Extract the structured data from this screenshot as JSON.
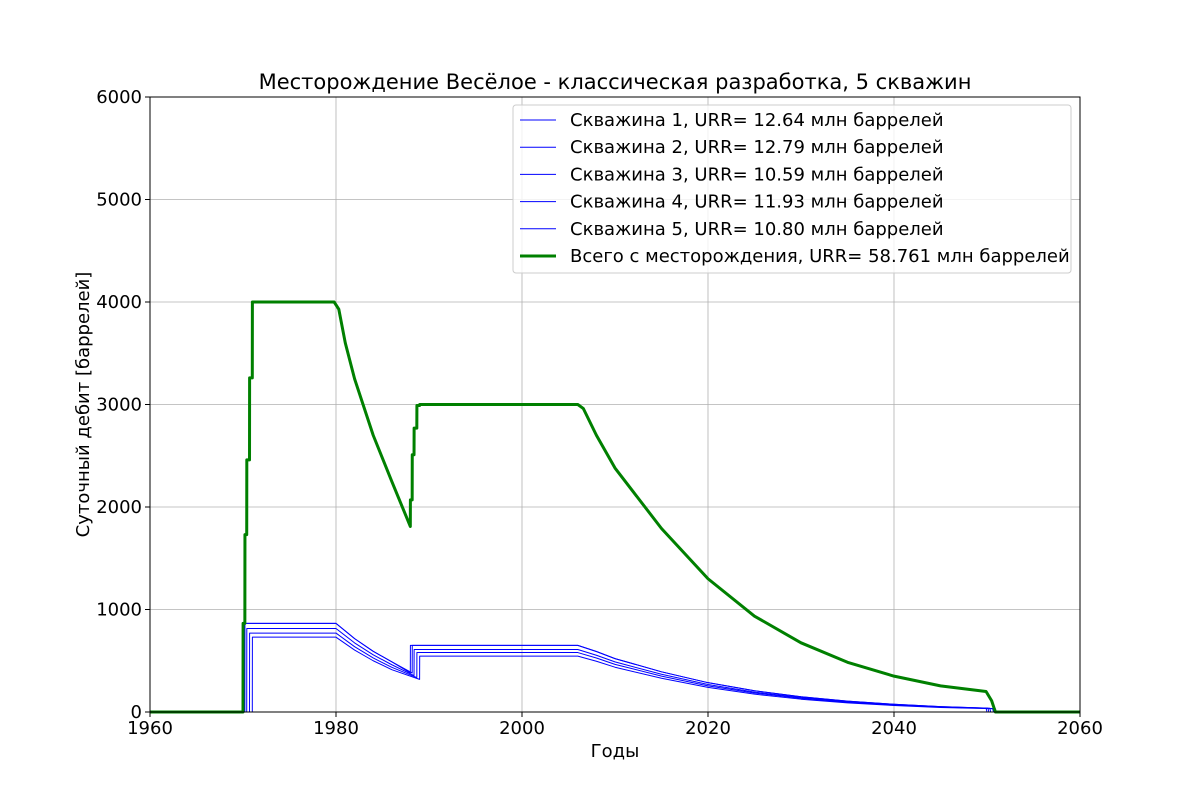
{
  "chart_data": {
    "type": "line",
    "title": "Месторождение Весёлое - классическая разработка, 5 скважин",
    "xlabel": "Годы",
    "ylabel": "Суточный дебит [баррелей]",
    "xlim": [
      1960,
      2060
    ],
    "ylim": [
      0,
      6000
    ],
    "xticks": [
      1960,
      1980,
      2000,
      2020,
      2040,
      2060
    ],
    "xtick_labels": [
      "1960",
      "1980",
      "2000",
      "2020",
      "2040",
      "2060"
    ],
    "yticks": [
      0,
      1000,
      2000,
      3000,
      4000,
      5000,
      6000
    ],
    "ytick_labels": [
      "0",
      "1000",
      "2000",
      "3000",
      "4000",
      "5000",
      "6000"
    ],
    "grid": true,
    "legend_position": "top-right",
    "colors": {
      "wells": "#0000ff",
      "total": "#008000"
    },
    "series": [
      {
        "name": "Скважина 1, URR= 12.64 млн баррелей",
        "color": "#0000ff",
        "x": [
          1960,
          1970.0,
          1970.01,
          1980.0,
          1982,
          1984,
          1986,
          1987.99,
          1988.0,
          2006.0,
          2008,
          2010,
          2015,
          2020,
          2025,
          2030,
          2035,
          2040,
          2045,
          2049.9,
          2050.0,
          2060
        ],
        "y": [
          0,
          0,
          865,
          865,
          716,
          592,
          490,
          381,
          650,
          650,
          590,
          521,
          392,
          286,
          207,
          149,
          106,
          75,
          52,
          38,
          0,
          0
        ]
      },
      {
        "name": "Скважина 2, URR= 12.79 млн баррелей",
        "color": "#0000ff",
        "x": [
          1960,
          1970.2,
          1970.21,
          1980.0,
          1982,
          1984,
          1986,
          1988.19,
          1988.2,
          2006.0,
          2008,
          2010,
          2015,
          2020,
          2025,
          2030,
          2035,
          2040,
          2045,
          2050.1,
          2050.2,
          2060
        ],
        "y": [
          0,
          0,
          865,
          865,
          716,
          592,
          490,
          381,
          650,
          650,
          590,
          521,
          392,
          286,
          207,
          149,
          106,
          75,
          52,
          38,
          0,
          0
        ]
      },
      {
        "name": "Скважина 3, URR= 10.59 млн баррелей",
        "color": "#0000ff",
        "x": [
          1960,
          1970.4,
          1970.41,
          1980.0,
          1982,
          1984,
          1986,
          1988.39,
          1988.4,
          2006.0,
          2008,
          2010,
          2015,
          2020,
          2025,
          2030,
          2035,
          2040,
          2045,
          2050.3,
          2050.4,
          2060
        ],
        "y": [
          0,
          0,
          815,
          815,
          674,
          558,
          461,
          355,
          610,
          610,
          554,
          489,
          368,
          268,
          194,
          140,
          100,
          70,
          49,
          36,
          0,
          0
        ]
      },
      {
        "name": "Скважина 4, URR= 11.93 млн баррелей",
        "color": "#0000ff",
        "x": [
          1960,
          1970.7,
          1970.71,
          1980.0,
          1982,
          1984,
          1986,
          1988.69,
          1988.7,
          2006.0,
          2008,
          2010,
          2015,
          2020,
          2025,
          2030,
          2035,
          2040,
          2045,
          2050.6,
          2050.7,
          2060
        ],
        "y": [
          0,
          0,
          770,
          770,
          637,
          527,
          436,
          336,
          580,
          580,
          527,
          465,
          350,
          255,
          185,
          133,
          95,
          67,
          47,
          34,
          0,
          0
        ]
      },
      {
        "name": "Скважина 5, URR= 10.80 млн баррелей",
        "color": "#0000ff",
        "x": [
          1960,
          1971.0,
          1971.01,
          1980.0,
          1982,
          1984,
          1986,
          1988.99,
          1989.0,
          2006.0,
          2008,
          2010,
          2015,
          2020,
          2025,
          2030,
          2035,
          2040,
          2045,
          2050.9,
          2051.0,
          2060
        ],
        "y": [
          0,
          0,
          730,
          730,
          604,
          500,
          413,
          318,
          545,
          545,
          495,
          437,
          329,
          240,
          174,
          125,
          89,
          63,
          44,
          32,
          0,
          0
        ]
      },
      {
        "name": "Всего с месторождения, URR= 58.761 млн баррелей",
        "color": "#008000",
        "x": [
          1960,
          1970.0,
          1970.01,
          1970.2,
          1970.21,
          1970.4,
          1970.41,
          1970.7,
          1970.71,
          1971.0,
          1971.01,
          1979.8,
          1980.3,
          1981,
          1982,
          1984,
          1986,
          1987.99,
          1988.0,
          1988.19,
          1988.2,
          1988.39,
          1988.4,
          1988.69,
          1988.7,
          1988.99,
          1989.0,
          2006.0,
          2006.6,
          2008,
          2010,
          2015,
          2020,
          2025,
          2030,
          2035,
          2040,
          2045,
          2049.9,
          2050.5,
          2050.9,
          2060
        ],
        "y": [
          0,
          0,
          865,
          865,
          1730,
          1730,
          2460,
          2460,
          3260,
          3260,
          4000,
          4000,
          3930,
          3600,
          3250,
          2700,
          2250,
          1810,
          2070,
          2070,
          2510,
          2510,
          2770,
          2770,
          2990,
          2990,
          3000,
          3000,
          2960,
          2700,
          2380,
          1790,
          1300,
          935,
          675,
          485,
          350,
          255,
          200,
          110,
          0,
          0
        ]
      }
    ]
  }
}
